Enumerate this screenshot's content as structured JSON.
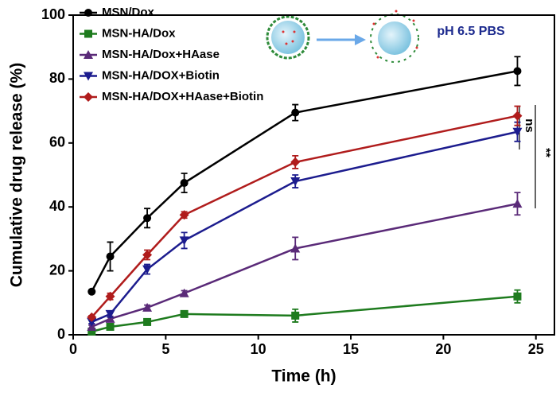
{
  "chart_data": {
    "type": "line",
    "xlabel": "Time (h)",
    "ylabel": "Cumulative drug release (%)",
    "annotation": "pH 6.5 PBS",
    "significance": [
      "ns",
      "**"
    ],
    "x": [
      1,
      2,
      4,
      6,
      12,
      24
    ],
    "series": [
      {
        "name": "MSN/Dox",
        "color": "#000000",
        "marker": "circle",
        "values": [
          13.5,
          24.5,
          36.5,
          47.5,
          69.5,
          82.5
        ],
        "errors": [
          0.5,
          4.5,
          3,
          3,
          2.5,
          4.5
        ]
      },
      {
        "name": "MSN-HA/Dox",
        "color": "#1e7b1e",
        "marker": "square",
        "values": [
          1,
          2.5,
          4,
          6.5,
          6,
          12
        ],
        "errors": [
          0.5,
          0.5,
          0.8,
          0.5,
          2,
          2
        ]
      },
      {
        "name": "MSN-HA/Dox+HAase",
        "color": "#5a2a78",
        "marker": "triangle-up",
        "values": [
          2.5,
          5,
          8.5,
          13,
          27,
          41
        ],
        "errors": [
          0.5,
          0.8,
          0.8,
          0.8,
          3.5,
          3.5
        ]
      },
      {
        "name": "MSN-HA/DOX+Biotin",
        "color": "#1c1c8e",
        "marker": "triangle-down",
        "values": [
          4,
          6.5,
          20.5,
          29.5,
          48,
          63.5
        ],
        "errors": [
          0.5,
          1,
          1.5,
          2.5,
          2,
          3
        ]
      },
      {
        "name": "MSN-HA/DOX+HAase+Biotin",
        "color": "#b01c1c",
        "marker": "diamond",
        "values": [
          5.5,
          12,
          25,
          37.5,
          54,
          68.5
        ],
        "errors": [
          0.5,
          1,
          1.5,
          1,
          2,
          3
        ]
      }
    ],
    "xlim": [
      0,
      26
    ],
    "xticks": [
      0,
      5,
      10,
      15,
      20,
      25
    ],
    "ylim": [
      0,
      100
    ],
    "yticks": [
      0,
      20,
      40,
      60,
      80,
      100
    ]
  }
}
